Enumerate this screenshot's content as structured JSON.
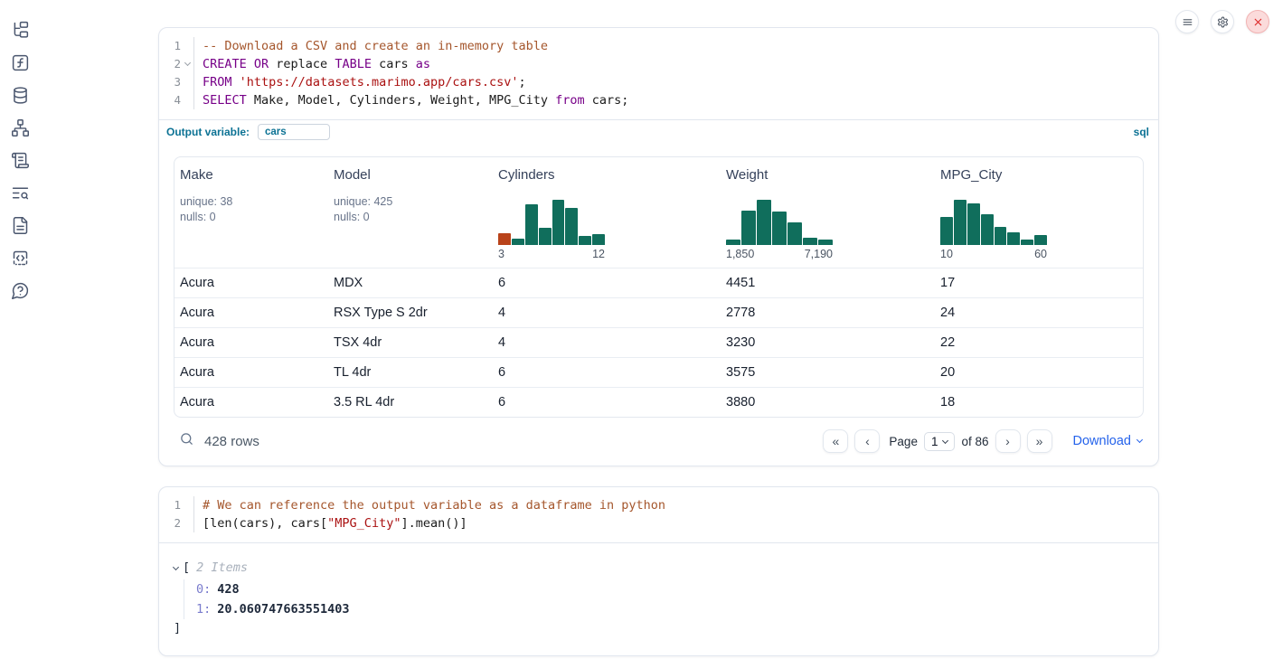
{
  "colors": {
    "hist_green": "#106e5c",
    "hist_orange": "#b9431a",
    "accent_blue": "#0c7294",
    "link_blue": "#2563eb"
  },
  "sidebar": {
    "icons": [
      "file-explorer",
      "variables",
      "data-sources",
      "dependency-graph",
      "outline",
      "logs",
      "documentation",
      "snippets",
      "ai-chat"
    ]
  },
  "topbar": {
    "buttons": [
      "menu",
      "settings",
      "shutdown"
    ]
  },
  "cell1": {
    "code": [
      {
        "num": "1",
        "tokens": [
          {
            "t": "-- Download a CSV and create an in-memory table",
            "c": "comment"
          }
        ]
      },
      {
        "num": "2",
        "tokens": [
          {
            "t": "CREATE OR",
            "c": "kw"
          },
          {
            "t": " replace ",
            "c": "plain"
          },
          {
            "t": "TABLE",
            "c": "kw"
          },
          {
            "t": " cars ",
            "c": "plain"
          },
          {
            "t": "as",
            "c": "kw"
          }
        ]
      },
      {
        "num": "3",
        "tokens": [
          {
            "t": "FROM",
            "c": "kw"
          },
          {
            "t": " ",
            "c": "plain"
          },
          {
            "t": "'https://datasets.marimo.app/cars.csv'",
            "c": "str"
          },
          {
            "t": ";",
            "c": "plain"
          }
        ]
      },
      {
        "num": "4",
        "tokens": [
          {
            "t": "SELECT",
            "c": "kw"
          },
          {
            "t": " Make, Model, Cylinders, Weight, MPG_City ",
            "c": "plain"
          },
          {
            "t": "from",
            "c": "kw"
          },
          {
            "t": " cars;",
            "c": "plain"
          }
        ]
      }
    ],
    "output_variable_label": "Output variable:",
    "output_variable_value": "cars",
    "language_badge": "sql",
    "table": {
      "columns": [
        {
          "name": "Make",
          "stats": [
            "unique: 38",
            "nulls: 0"
          ]
        },
        {
          "name": "Model",
          "stats": [
            "unique: 425",
            "nulls: 0"
          ]
        },
        {
          "name": "Cylinders",
          "histogram": {
            "min_label": "3",
            "max_label": "12",
            "bars": [
              {
                "v": 0.24,
                "c": "hist_orange"
              },
              {
                "v": 0.13,
                "c": "hist_green"
              },
              {
                "v": 0.85,
                "c": "hist_green"
              },
              {
                "v": 0.35,
                "c": "hist_green"
              },
              {
                "v": 0.95,
                "c": "hist_green"
              },
              {
                "v": 0.78,
                "c": "hist_green"
              },
              {
                "v": 0.18,
                "c": "hist_green"
              },
              {
                "v": 0.22,
                "c": "hist_green"
              }
            ]
          }
        },
        {
          "name": "Weight",
          "histogram": {
            "min_label": "1,850",
            "max_label": "7,190",
            "bars": [
              {
                "v": 0.12,
                "c": "hist_green"
              },
              {
                "v": 0.72,
                "c": "hist_green"
              },
              {
                "v": 0.95,
                "c": "hist_green"
              },
              {
                "v": 0.7,
                "c": "hist_green"
              },
              {
                "v": 0.47,
                "c": "hist_green"
              },
              {
                "v": 0.15,
                "c": "hist_green"
              },
              {
                "v": 0.12,
                "c": "hist_green"
              }
            ]
          }
        },
        {
          "name": "MPG_City",
          "histogram": {
            "min_label": "10",
            "max_label": "60",
            "bars": [
              {
                "v": 0.58,
                "c": "hist_green"
              },
              {
                "v": 0.95,
                "c": "hist_green"
              },
              {
                "v": 0.87,
                "c": "hist_green"
              },
              {
                "v": 0.64,
                "c": "hist_green"
              },
              {
                "v": 0.38,
                "c": "hist_green"
              },
              {
                "v": 0.27,
                "c": "hist_green"
              },
              {
                "v": 0.12,
                "c": "hist_green"
              },
              {
                "v": 0.21,
                "c": "hist_green"
              }
            ]
          }
        }
      ],
      "rows": [
        [
          "Acura",
          "MDX",
          "6",
          "4451",
          "17"
        ],
        [
          "Acura",
          "RSX Type S 2dr",
          "4",
          "2778",
          "24"
        ],
        [
          "Acura",
          "TSX 4dr",
          "4",
          "3230",
          "22"
        ],
        [
          "Acura",
          "TL 4dr",
          "6",
          "3575",
          "20"
        ],
        [
          "Acura",
          "3.5 RL 4dr",
          "6",
          "3880",
          "18"
        ]
      ],
      "footer": {
        "row_count": "428 rows",
        "page_label": "Page",
        "page_value": "1",
        "of_label": "of 86",
        "download_label": "Download"
      }
    }
  },
  "cell2": {
    "code": [
      {
        "num": "1",
        "tokens": [
          {
            "t": "# We can reference the output variable as a dataframe in python",
            "c": "comment"
          }
        ]
      },
      {
        "num": "2",
        "tokens": [
          {
            "t": "[len(cars), cars[",
            "c": "plain"
          },
          {
            "t": "\"MPG_City\"",
            "c": "str"
          },
          {
            "t": "].mean()]",
            "c": "plain"
          }
        ]
      }
    ],
    "output": {
      "open_bracket": "[",
      "items_label": "2 Items",
      "entries": [
        {
          "key": "0:",
          "value": "428"
        },
        {
          "key": "1:",
          "value": "20.060747663551403"
        }
      ],
      "close_bracket": "]"
    }
  }
}
